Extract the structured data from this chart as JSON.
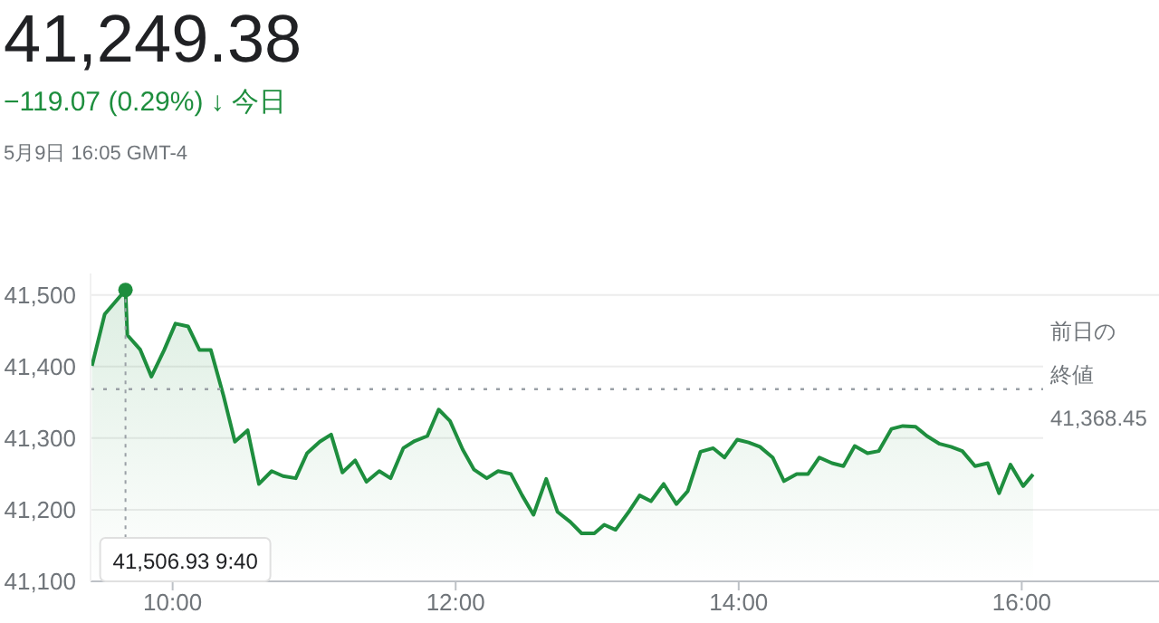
{
  "chart_data": {
    "type": "area",
    "title": "41,249.38",
    "subtitle": "−119.07 (0.29%) ↓ 今日",
    "annotations": [
      "5月9日 16:05 GMT-4",
      {
        "text": "41,506.93 9:40",
        "x": 9.667,
        "y": 41506.93
      }
    ],
    "x": [
      9.43,
      9.52,
      9.667,
      9.68,
      9.77,
      9.85,
      9.94,
      10.02,
      10.11,
      10.19,
      10.27,
      10.36,
      10.44,
      10.53,
      10.61,
      10.7,
      10.78,
      10.87,
      10.95,
      11.04,
      11.12,
      11.2,
      11.29,
      11.37,
      11.46,
      11.54,
      11.63,
      11.71,
      11.8,
      11.88,
      11.96,
      12.05,
      12.13,
      12.22,
      12.3,
      12.39,
      12.47,
      12.55,
      12.64,
      12.72,
      12.81,
      12.89,
      12.98,
      13.05,
      13.13,
      13.23,
      13.3,
      13.38,
      13.47,
      13.56,
      13.64,
      13.73,
      13.82,
      13.9,
      13.99,
      14.07,
      14.15,
      14.24,
      14.32,
      14.41,
      14.49,
      14.57,
      14.66,
      14.74,
      14.82,
      14.91,
      14.99,
      15.08,
      15.16,
      15.25,
      15.33,
      15.42,
      15.5,
      15.58,
      15.67,
      15.76,
      15.84,
      15.92,
      16.01,
      16.08
    ],
    "series": [
      {
        "color": "#1e8e3e",
        "values": [
          41401,
          41473,
          41506.93,
          41444,
          41424,
          41386,
          41423,
          41460,
          41456,
          41423,
          41423,
          41359,
          41295,
          41311,
          41236,
          41254,
          41247,
          41244,
          41279,
          41295,
          41305,
          41252,
          41269,
          41239,
          41254,
          41244,
          41286,
          41296,
          41303,
          41340,
          41324,
          41284,
          41256,
          41244,
          41254,
          41250,
          41220,
          41193,
          41243,
          41197,
          41183,
          41167,
          41167,
          41179,
          41172,
          41199,
          41220,
          41212,
          41236,
          41208,
          41226,
          41281,
          41286,
          41273,
          41298,
          41294,
          41288,
          41273,
          41240,
          41250,
          41250,
          41273,
          41265,
          41261,
          41289,
          41279,
          41282,
          41313,
          41317,
          41316,
          41303,
          41292,
          41288,
          41282,
          41261,
          41265,
          41223,
          41263,
          41233,
          41249.38
        ]
      }
    ],
    "xlim": [
      9.42,
      16.97
    ],
    "xticks": [
      {
        "value": 10,
        "label": "10:00"
      },
      {
        "value": 12,
        "label": "12:00"
      },
      {
        "value": 14,
        "label": "14:00"
      },
      {
        "value": 16,
        "label": "16:00"
      }
    ],
    "ylim": [
      41100,
      41530
    ],
    "yticks": [
      {
        "value": 41100,
        "label": "41,100"
      },
      {
        "value": 41200,
        "label": "41,200"
      },
      {
        "value": 41300,
        "label": "41,300"
      },
      {
        "value": 41400,
        "label": "41,400"
      },
      {
        "value": 41500,
        "label": "41,500"
      }
    ],
    "ref_lines": [
      {
        "axis": "y",
        "value": 41368.45,
        "label": "前日の終値\n41,368.45",
        "line_style": "dotted",
        "color": "#9aa0a6"
      }
    ],
    "grid": "y",
    "legend": false,
    "marker": "none",
    "line_style": "solid"
  }
}
